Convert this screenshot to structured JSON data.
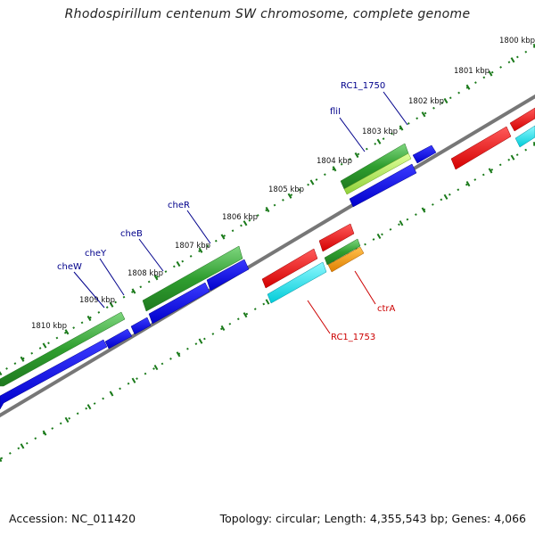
{
  "title": "Rhodospirillum centenum SW chromosome, complete genome",
  "footer": {
    "accession": "Accession: NC_011420",
    "topology": "Topology: circular; Length: 4,355,543 bp; Genes: 4,066"
  },
  "kbp_labels": [
    "1800 kbp",
    "1801 kbp",
    "1802 kbp",
    "1803 kbp",
    "1804 kbp",
    "1805 kbp",
    "1806 kbp",
    "1807 kbp",
    "1808 kbp",
    "1809 kbp",
    "1810 kbp"
  ],
  "gene_labels": [
    {
      "text": "RC1_1750",
      "color": "#00008b"
    },
    {
      "text": "fliI",
      "color": "#00008b"
    },
    {
      "text": "cheR",
      "color": "#00008b"
    },
    {
      "text": "cheB",
      "color": "#00008b"
    },
    {
      "text": "cheY",
      "color": "#00008b"
    },
    {
      "text": "cheW",
      "color": "#00008b"
    },
    {
      "text": "ctrA",
      "color": "#cc0000"
    },
    {
      "text": "RC1_1753",
      "color": "#cc0000"
    }
  ],
  "colors": {
    "backbone": "#777777",
    "ticks": "#1a7a1a",
    "green": "#2f9e2f",
    "lightgreen": "#a8e34a",
    "blue": "#0000ee",
    "red": "#ee0000",
    "cyan": "#00e5ee",
    "orange": "#ff9900"
  }
}
